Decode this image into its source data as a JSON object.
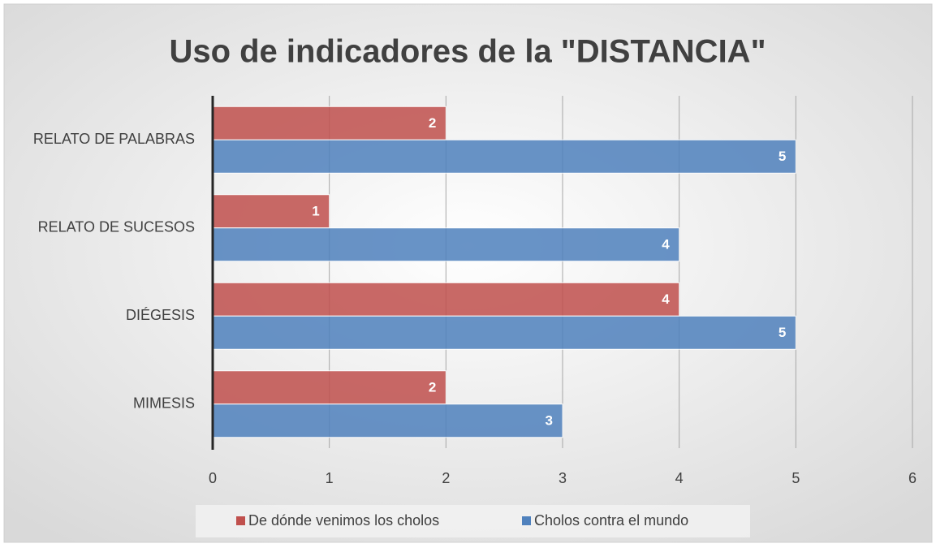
{
  "chart_data": {
    "type": "hbar",
    "title": "Uso de indicadores de la \"DISTANCIA\"",
    "categories": [
      "RELATO DE PALABRAS",
      "RELATO DE SUCESOS",
      "DIÉGESIS",
      "MIMESIS"
    ],
    "series": [
      {
        "name": "De dónde venimos los cholos",
        "color": "#c0504d",
        "values": [
          2,
          1,
          4,
          2
        ]
      },
      {
        "name": "Cholos contra el mundo",
        "color": "#4f81bd",
        "values": [
          5,
          4,
          5,
          3
        ]
      }
    ],
    "xlim": [
      0,
      6
    ],
    "xticks": [
      0,
      1,
      2,
      3,
      4,
      5,
      6
    ],
    "grid": true,
    "legend": "bottom"
  }
}
